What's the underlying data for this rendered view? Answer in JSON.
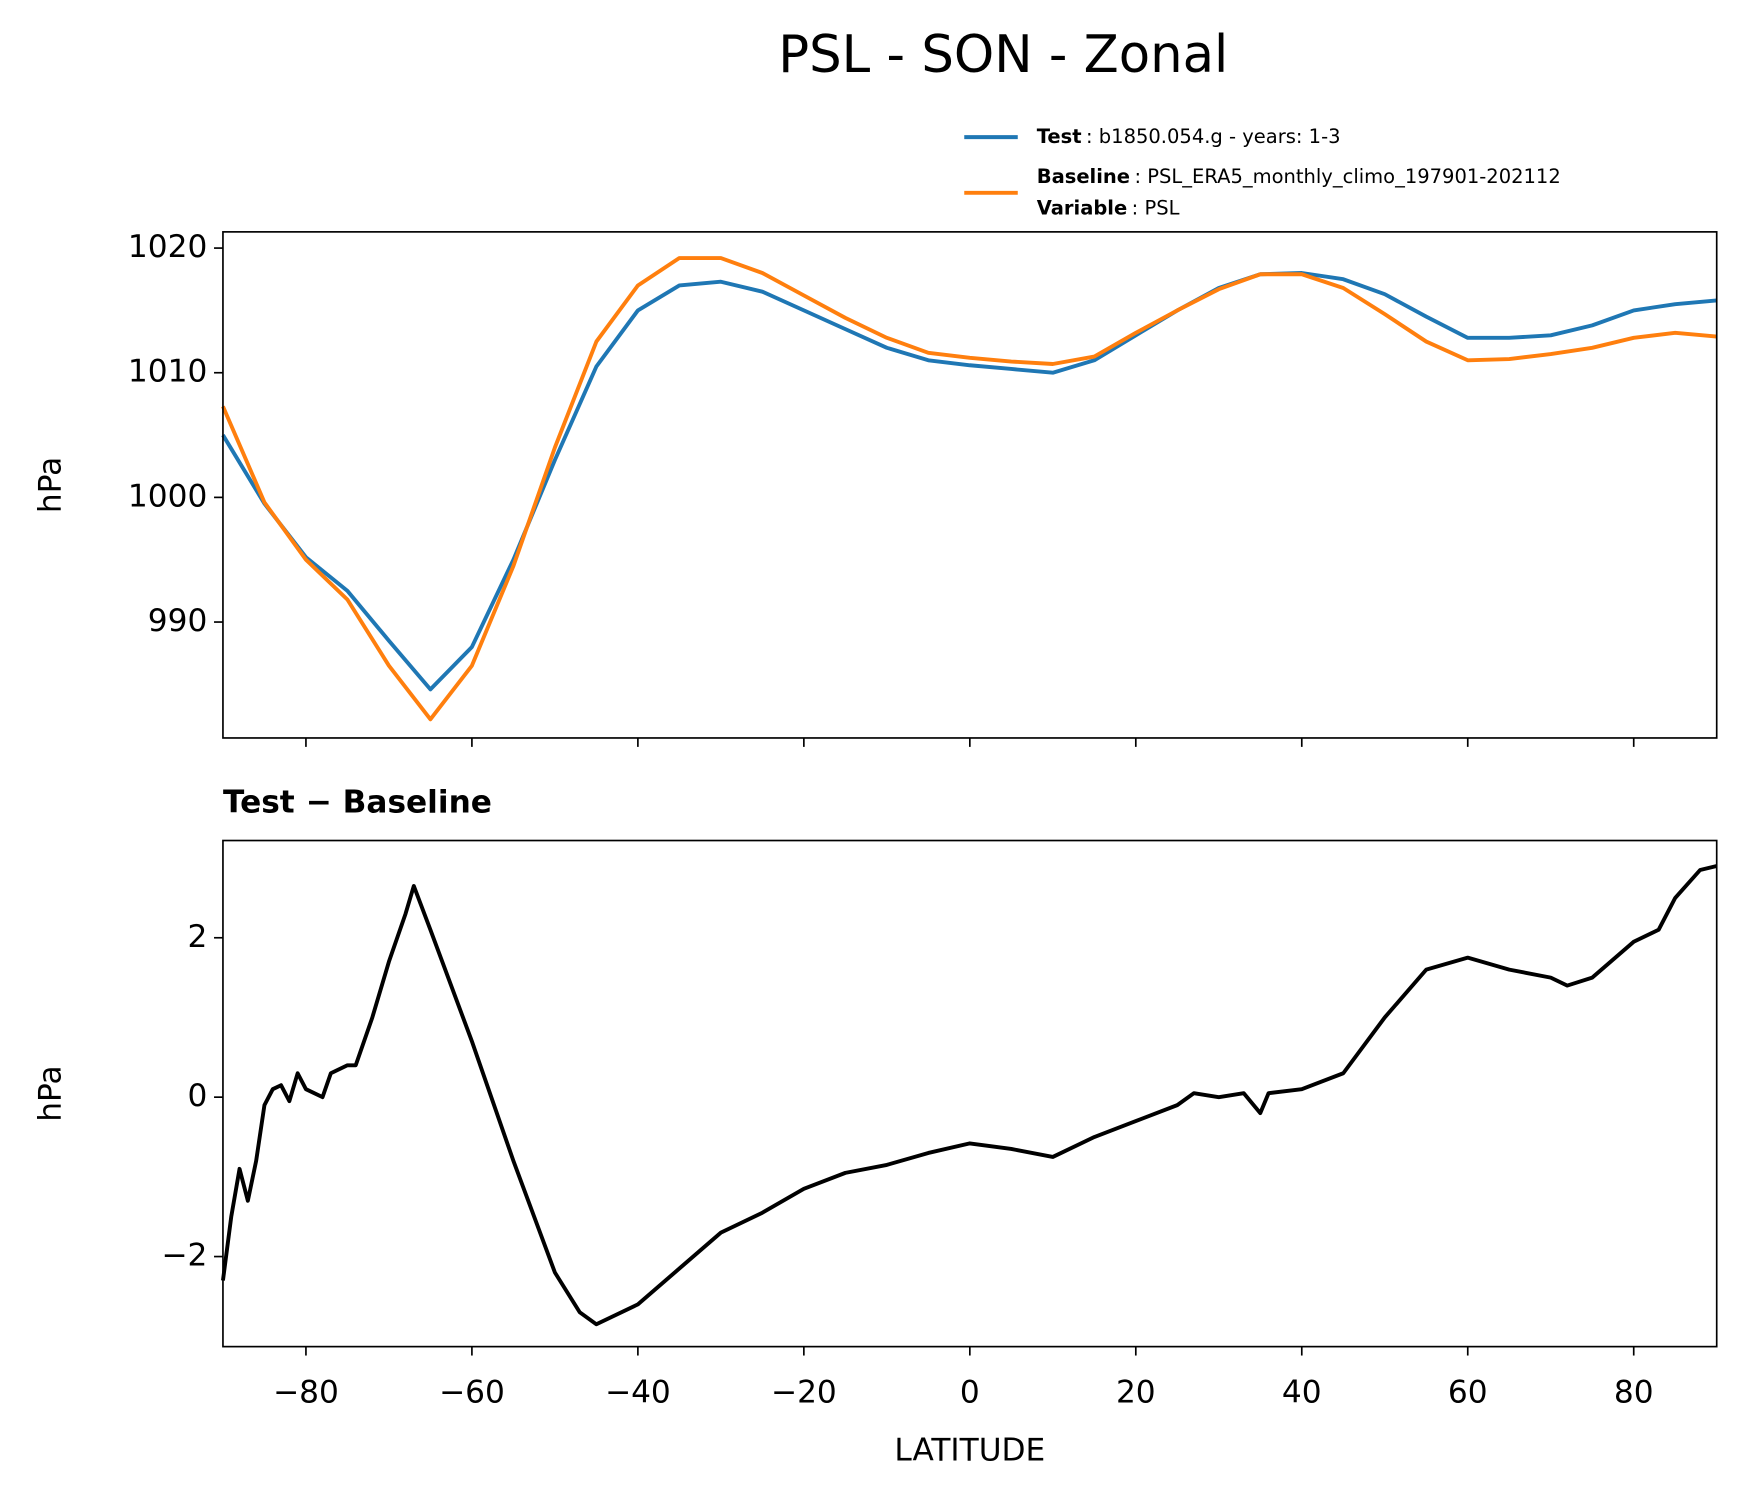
{
  "chart_data": [
    {
      "type": "line",
      "title": "PSL - SON - Zonal",
      "ylabel": "hPa",
      "x": [
        -90,
        -85,
        -80,
        -75,
        -70,
        -65,
        -60,
        -55,
        -50,
        -45,
        -40,
        -35,
        -30,
        -25,
        -20,
        -15,
        -10,
        -5,
        0,
        5,
        10,
        15,
        20,
        25,
        30,
        35,
        40,
        45,
        50,
        55,
        60,
        65,
        70,
        75,
        80,
        85,
        90
      ],
      "series": [
        {
          "name": "Test",
          "detail": ": b1850.054.g - years: 1-3",
          "color": "#1f77b4",
          "values": [
            1005,
            999.5,
            995.2,
            992.5,
            988.5,
            984.6,
            988,
            995,
            1003,
            1010.5,
            1015,
            1017,
            1017.3,
            1016.5,
            1015,
            1013.5,
            1012,
            1011,
            1010.6,
            1010.3,
            1010,
            1011,
            1013,
            1015,
            1016.8,
            1017.9,
            1018,
            1017.5,
            1016.3,
            1014.5,
            1012.8,
            1012.8,
            1013,
            1013.8,
            1015,
            1015.5,
            1015.8
          ]
        },
        {
          "name": "Baseline",
          "detail": ": PSL_ERA5_monthly_climo_197901-202112",
          "extra_name": "Variable",
          "extra_detail": ": PSL",
          "color": "#ff7f0e",
          "values": [
            1007.3,
            999.6,
            995,
            991.8,
            986.5,
            982.2,
            986.5,
            994.5,
            1004,
            1012.5,
            1017,
            1019.2,
            1019.2,
            1018,
            1016.2,
            1014.4,
            1012.8,
            1011.6,
            1011.2,
            1010.9,
            1010.7,
            1011.3,
            1013.2,
            1015,
            1016.7,
            1017.9,
            1017.9,
            1016.8,
            1014.7,
            1012.5,
            1011,
            1011.1,
            1011.5,
            1012,
            1012.8,
            1013.2,
            1012.9
          ]
        }
      ],
      "xlim": [
        -90,
        90
      ],
      "xticks": [
        -80,
        -60,
        -40,
        -20,
        0,
        20,
        40,
        60,
        80
      ],
      "ylim": [
        980.7,
        1021.3
      ],
      "yticks": [
        990,
        1000,
        1010,
        1020
      ],
      "legend": "upper right"
    },
    {
      "type": "line",
      "title": "Test − Baseline",
      "ylabel": "hPa",
      "xlabel": "LATITUDE",
      "x": [
        -90,
        -89,
        -88,
        -87,
        -86,
        -85,
        -84,
        -83,
        -82,
        -81,
        -80,
        -78,
        -77,
        -75,
        -74,
        -72,
        -70,
        -68,
        -67,
        -65,
        -60,
        -55,
        -50,
        -47,
        -45,
        -40,
        -35,
        -30,
        -25,
        -20,
        -15,
        -10,
        -5,
        0,
        5,
        10,
        15,
        20,
        25,
        27,
        30,
        33,
        35,
        36,
        40,
        45,
        50,
        55,
        60,
        65,
        70,
        72,
        75,
        80,
        83,
        85,
        88,
        90
      ],
      "series": [
        {
          "color": "#000000",
          "values": [
            -2.3,
            -1.5,
            -0.9,
            -1.3,
            -0.8,
            -0.1,
            0.1,
            0.15,
            -0.05,
            0.3,
            0.1,
            0.0,
            0.3,
            0.4,
            0.4,
            1.0,
            1.7,
            2.3,
            2.65,
            2.1,
            0.7,
            -0.8,
            -2.2,
            -2.7,
            -2.85,
            -2.6,
            -2.15,
            -1.7,
            -1.45,
            -1.15,
            -0.95,
            -0.85,
            -0.7,
            -0.58,
            -0.65,
            -0.75,
            -0.5,
            -0.3,
            -0.1,
            0.05,
            0.0,
            0.05,
            -0.2,
            0.05,
            0.1,
            0.3,
            1.0,
            1.6,
            1.75,
            1.6,
            1.5,
            1.4,
            1.5,
            1.95,
            2.1,
            2.5,
            2.85,
            2.9
          ]
        }
      ],
      "xlim": [
        -90,
        90
      ],
      "xticks": [
        {
          "value": -80,
          "label": "−80"
        },
        {
          "value": -60,
          "label": "−60"
        },
        {
          "value": -40,
          "label": "−40"
        },
        {
          "value": -20,
          "label": "−20"
        },
        0,
        20,
        40,
        60,
        80
      ],
      "ylim": [
        -3.13,
        3.22
      ],
      "yticks": [
        {
          "value": -2,
          "label": "−2"
        },
        0,
        2
      ]
    }
  ]
}
